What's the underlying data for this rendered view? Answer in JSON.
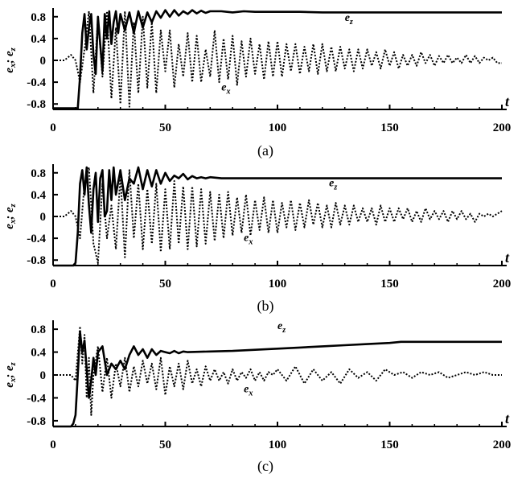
{
  "chart_data": [
    {
      "type": "line",
      "panel_label": "(a)",
      "xlabel": "t",
      "ylabel": "e_x; e_z",
      "xlim": [
        0,
        200
      ],
      "ylim": [
        -0.9,
        0.9
      ],
      "xticks": [
        0,
        50,
        100,
        150,
        200
      ],
      "yticks": [
        0.8,
        0.4,
        0,
        -0.4,
        -0.8
      ],
      "series": [
        {
          "name": "e_z",
          "style": "solid",
          "x": [
            0,
            11,
            12,
            13,
            14,
            15,
            16,
            17,
            18,
            19,
            20,
            21,
            22,
            23,
            24,
            25,
            26,
            27,
            28,
            29,
            30,
            32,
            34,
            36,
            38,
            40,
            42,
            44,
            46,
            48,
            50,
            52,
            54,
            56,
            58,
            60,
            62,
            64,
            66,
            68,
            70,
            75,
            80,
            85,
            90,
            100,
            110,
            120,
            130,
            200
          ],
          "y": [
            -0.88,
            -0.88,
            -0.3,
            0.5,
            0.85,
            0.2,
            0.6,
            0.85,
            0.1,
            -0.25,
            0.8,
            0.3,
            -0.2,
            0.85,
            0.4,
            0.9,
            0.3,
            0.7,
            0.9,
            0.5,
            0.85,
            0.55,
            0.88,
            0.5,
            0.9,
            0.6,
            0.88,
            0.7,
            0.9,
            0.78,
            0.92,
            0.8,
            0.92,
            0.82,
            0.9,
            0.85,
            0.92,
            0.86,
            0.91,
            0.87,
            0.9,
            0.9,
            0.88,
            0.9,
            0.89,
            0.89,
            0.89,
            0.88,
            0.88,
            0.88
          ]
        },
        {
          "name": "e_x",
          "style": "dotted",
          "x": [
            0,
            5,
            8,
            10,
            12,
            14,
            16,
            18,
            20,
            22,
            24,
            26,
            28,
            30,
            32,
            34,
            36,
            38,
            40,
            42,
            44,
            46,
            48,
            50,
            52,
            54,
            56,
            58,
            60,
            62,
            64,
            66,
            68,
            70,
            72,
            74,
            76,
            78,
            80,
            82,
            84,
            86,
            88,
            90,
            92,
            94,
            96,
            98,
            100,
            102,
            104,
            106,
            108,
            110,
            112,
            114,
            116,
            118,
            120,
            122,
            124,
            126,
            128,
            130,
            132,
            134,
            136,
            138,
            140,
            142,
            144,
            146,
            148,
            150,
            152,
            154,
            156,
            158,
            160,
            162,
            164,
            166,
            168,
            170,
            172,
            174,
            176,
            178,
            180,
            182,
            184,
            186,
            188,
            190,
            192,
            194,
            196,
            198,
            200
          ],
          "y": [
            0.0,
            0.0,
            0.1,
            0.0,
            -0.4,
            0.2,
            0.9,
            -0.6,
            0.8,
            -0.3,
            0.9,
            -0.7,
            0.6,
            -0.8,
            0.9,
            -0.85,
            0.7,
            -0.6,
            0.8,
            -0.5,
            0.7,
            -0.6,
            0.55,
            -0.2,
            0.55,
            -0.5,
            0.3,
            -0.3,
            0.5,
            -0.4,
            0.45,
            -0.4,
            0.2,
            -0.3,
            0.55,
            -0.4,
            0.4,
            -0.35,
            0.45,
            -0.45,
            0.35,
            -0.3,
            0.4,
            -0.25,
            0.3,
            -0.35,
            0.35,
            -0.3,
            0.35,
            -0.3,
            0.3,
            -0.2,
            0.3,
            -0.25,
            0.25,
            -0.2,
            0.3,
            -0.25,
            0.3,
            -0.2,
            0.25,
            -0.2,
            0.25,
            -0.15,
            0.2,
            -0.2,
            0.2,
            -0.15,
            0.2,
            -0.1,
            0.15,
            -0.15,
            0.2,
            -0.1,
            0.15,
            -0.15,
            0.1,
            -0.1,
            0.1,
            -0.1,
            0.15,
            -0.05,
            0.1,
            -0.1,
            0.08,
            -0.05,
            0.1,
            -0.05,
            0.05,
            -0.05,
            0.1,
            -0.05,
            0.08,
            -0.05,
            0.05,
            0.0,
            0.05,
            -0.05,
            -0.05
          ]
        }
      ],
      "annotations": [
        {
          "text": "e_z",
          "x": 130,
          "y": 0.72
        },
        {
          "text": "e_x",
          "x": 75,
          "y": -0.55
        }
      ]
    },
    {
      "type": "line",
      "panel_label": "(b)",
      "xlabel": "t",
      "ylabel": "e_x; e_z",
      "xlim": [
        0,
        200
      ],
      "ylim": [
        -0.9,
        0.9
      ],
      "xticks": [
        0,
        50,
        100,
        150,
        200
      ],
      "yticks": [
        0.8,
        0.4,
        0,
        -0.4,
        -0.8
      ],
      "series": [
        {
          "name": "e_z",
          "style": "solid",
          "x": [
            0,
            9,
            10,
            11,
            12,
            13,
            14,
            15,
            16,
            17,
            18,
            19,
            20,
            21,
            22,
            23,
            24,
            25,
            26,
            27,
            28,
            30,
            32,
            34,
            36,
            38,
            40,
            42,
            44,
            46,
            48,
            50,
            52,
            54,
            56,
            58,
            60,
            62,
            64,
            66,
            68,
            70,
            75,
            80,
            90,
            100,
            120,
            140,
            160,
            200
          ],
          "y": [
            -0.9,
            -0.9,
            -0.85,
            -0.3,
            0.6,
            0.85,
            0.4,
            0.9,
            0.2,
            -0.3,
            0.5,
            0.8,
            -0.1,
            0.7,
            0.85,
            0.0,
            0.1,
            0.85,
            0.3,
            0.9,
            0.4,
            0.85,
            0.3,
            0.7,
            0.6,
            0.9,
            0.5,
            0.85,
            0.55,
            0.85,
            0.6,
            0.8,
            0.65,
            0.75,
            0.7,
            0.78,
            0.68,
            0.74,
            0.7,
            0.72,
            0.7,
            0.72,
            0.7,
            0.7,
            0.7,
            0.7,
            0.7,
            0.7,
            0.7,
            0.7
          ]
        },
        {
          "name": "e_x",
          "style": "dotted",
          "x": [
            0,
            5,
            8,
            10,
            12,
            14,
            16,
            18,
            20,
            22,
            24,
            26,
            28,
            30,
            32,
            34,
            36,
            38,
            40,
            42,
            44,
            46,
            48,
            50,
            52,
            54,
            56,
            58,
            60,
            62,
            64,
            66,
            68,
            70,
            72,
            74,
            76,
            78,
            80,
            82,
            84,
            86,
            88,
            90,
            92,
            94,
            96,
            98,
            100,
            102,
            104,
            106,
            108,
            110,
            112,
            114,
            116,
            118,
            120,
            122,
            124,
            126,
            128,
            130,
            132,
            134,
            136,
            138,
            140,
            142,
            144,
            146,
            148,
            150,
            152,
            154,
            156,
            158,
            160,
            162,
            164,
            166,
            168,
            170,
            172,
            174,
            176,
            178,
            180,
            182,
            184,
            186,
            188,
            190,
            192,
            194,
            196,
            198,
            200
          ],
          "y": [
            0.0,
            0.0,
            0.1,
            0.0,
            -0.4,
            0.6,
            0.9,
            -0.5,
            -0.85,
            0.6,
            -0.4,
            0.2,
            -0.6,
            0.75,
            -0.75,
            0.85,
            -0.4,
            0.6,
            -0.6,
            0.5,
            -0.5,
            0.6,
            -0.65,
            0.5,
            -0.6,
            0.65,
            -0.5,
            0.55,
            -0.6,
            0.55,
            -0.55,
            0.5,
            -0.5,
            0.45,
            -0.45,
            0.4,
            -0.4,
            0.45,
            -0.35,
            0.35,
            -0.3,
            0.4,
            -0.35,
            0.3,
            -0.25,
            0.35,
            -0.3,
            0.3,
            -0.3,
            0.25,
            -0.2,
            0.3,
            -0.25,
            0.25,
            -0.2,
            0.3,
            -0.15,
            0.25,
            -0.2,
            0.2,
            -0.2,
            0.25,
            -0.15,
            0.2,
            -0.15,
            0.2,
            -0.1,
            0.15,
            -0.1,
            0.15,
            -0.15,
            0.2,
            -0.1,
            0.15,
            -0.1,
            0.15,
            -0.05,
            0.15,
            -0.1,
            0.1,
            -0.1,
            0.15,
            -0.05,
            0.1,
            -0.05,
            0.1,
            -0.1,
            0.1,
            -0.05,
            0.1,
            -0.05,
            0.05,
            -0.1,
            0.05,
            0.0,
            0.05,
            0.0,
            0.05,
            0.1
          ]
        }
      ],
      "annotations": [
        {
          "text": "e_z",
          "x": 123,
          "y": 0.55
        },
        {
          "text": "e_x",
          "x": 85,
          "y": -0.45
        }
      ]
    },
    {
      "type": "line",
      "panel_label": "(c)",
      "xlabel": "t",
      "ylabel": "e_x; e_z",
      "xlim": [
        0,
        200
      ],
      "ylim": [
        -0.9,
        0.9
      ],
      "xticks": [
        0,
        50,
        100,
        150,
        200
      ],
      "yticks": [
        0.8,
        0.4,
        0,
        -0.4,
        -0.8
      ],
      "series": [
        {
          "name": "e_z",
          "style": "solid",
          "x": [
            0,
            8,
            9,
            10,
            11,
            12,
            13,
            14,
            15,
            16,
            17,
            18,
            19,
            20,
            22,
            24,
            26,
            28,
            30,
            32,
            34,
            36,
            38,
            40,
            42,
            44,
            46,
            48,
            50,
            52,
            54,
            56,
            58,
            60,
            70,
            80,
            90,
            100,
            110,
            120,
            130,
            140,
            150,
            155,
            160,
            170,
            180,
            190,
            200
          ],
          "y": [
            -0.9,
            -0.9,
            -0.85,
            -0.7,
            0.0,
            0.75,
            0.4,
            0.6,
            0.1,
            -0.4,
            -0.1,
            0.3,
            0.0,
            0.4,
            0.5,
            0.0,
            0.2,
            0.1,
            0.25,
            0.1,
            0.35,
            0.5,
            0.35,
            0.45,
            0.3,
            0.45,
            0.35,
            0.42,
            0.4,
            0.38,
            0.42,
            0.38,
            0.41,
            0.4,
            0.41,
            0.42,
            0.44,
            0.46,
            0.48,
            0.5,
            0.52,
            0.54,
            0.56,
            0.58,
            0.58,
            0.58,
            0.58,
            0.58,
            0.58
          ]
        },
        {
          "name": "e_x",
          "style": "dotted",
          "x": [
            0,
            8,
            10,
            12,
            13,
            14,
            15,
            16,
            17,
            18,
            20,
            22,
            24,
            26,
            28,
            30,
            32,
            34,
            36,
            38,
            40,
            42,
            44,
            46,
            48,
            50,
            52,
            54,
            56,
            58,
            60,
            62,
            64,
            66,
            68,
            70,
            72,
            74,
            76,
            78,
            80,
            82,
            84,
            86,
            88,
            90,
            92,
            94,
            96,
            98,
            100,
            104,
            108,
            112,
            116,
            120,
            124,
            128,
            132,
            136,
            140,
            144,
            148,
            152,
            156,
            160,
            164,
            168,
            172,
            176,
            180,
            184,
            188,
            192,
            196,
            200
          ],
          "y": [
            0.0,
            0.0,
            -0.1,
            0.85,
            0.2,
            0.7,
            -0.4,
            0.3,
            -0.7,
            0.0,
            0.5,
            -0.3,
            0.3,
            -0.4,
            0.2,
            -0.2,
            0.3,
            -0.3,
            0.15,
            -0.2,
            0.25,
            -0.15,
            0.2,
            -0.25,
            0.3,
            -0.35,
            0.15,
            -0.2,
            0.2,
            -0.25,
            0.25,
            -0.15,
            0.1,
            -0.2,
            0.15,
            -0.1,
            0.1,
            -0.1,
            0.05,
            -0.15,
            0.1,
            -0.1,
            0.05,
            -0.05,
            0.1,
            -0.1,
            0.05,
            -0.1,
            0.05,
            0.0,
            0.1,
            -0.1,
            0.15,
            -0.15,
            0.1,
            -0.1,
            0.05,
            -0.15,
            0.1,
            -0.05,
            0.05,
            -0.1,
            0.1,
            0.0,
            0.05,
            -0.05,
            0.05,
            0.0,
            0.05,
            -0.05,
            0.0,
            0.05,
            0.0,
            0.05,
            0.0,
            0.0
          ]
        }
      ],
      "annotations": [
        {
          "text": "e_z",
          "x": 100,
          "y": 0.8
        },
        {
          "text": "e_x",
          "x": 85,
          "y": -0.3
        }
      ]
    }
  ]
}
